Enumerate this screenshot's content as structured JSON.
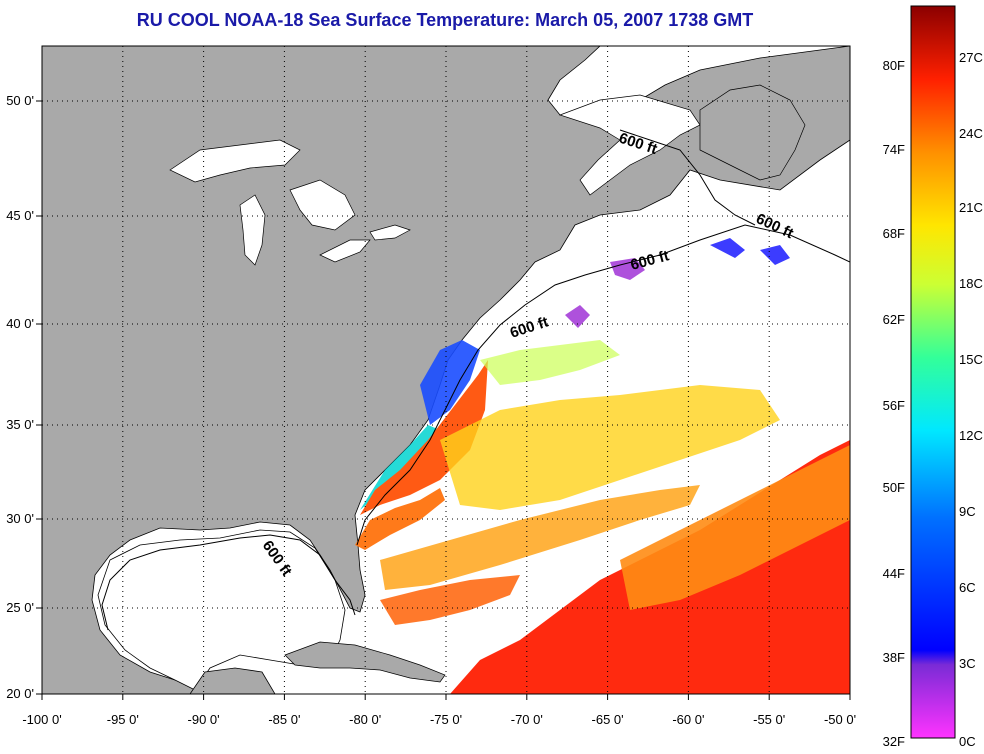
{
  "title": "RU COOL  NOAA-18  Sea Surface Temperature:  March 05, 2007 1738 GMT",
  "x_ticks": [
    "-100 0'",
    "-95 0'",
    "-90 0'",
    "-85 0'",
    "-80 0'",
    "-75 0'",
    "-70 0'",
    "-65 0'",
    "-60 0'",
    "-55 0'",
    "-50 0'"
  ],
  "y_ticks": [
    "50 0'",
    "45 0'",
    "40 0'",
    "35 0'",
    "30 0'",
    "25 0'",
    "20 0'"
  ],
  "contour_label": "600 ft",
  "colorbar": {
    "fahrenheit": [
      "80F",
      "74F",
      "68F",
      "62F",
      "56F",
      "50F",
      "44F",
      "38F",
      "32F"
    ],
    "celsius": [
      "27C",
      "24C",
      "21C",
      "18C",
      "15C",
      "12C",
      "9C",
      "6C",
      "3C",
      "0C"
    ]
  },
  "colors": {
    "land": "#a9a9a9",
    "ocean_nodata": "#ffffff",
    "title": "#1a1aa8"
  }
}
